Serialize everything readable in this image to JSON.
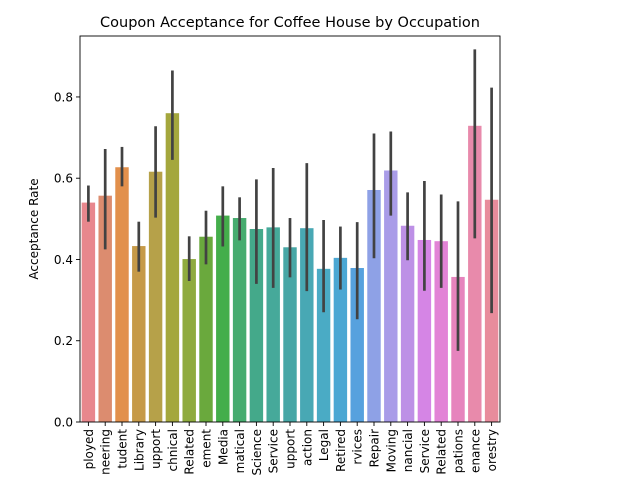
{
  "chart_data": {
    "type": "bar",
    "title": "Coupon Acceptance for Coffee House by Occupation",
    "xlabel": "",
    "ylabel": "Acceptance Rate",
    "ylim": [
      0,
      0.95
    ],
    "yticks": [
      0.0,
      0.2,
      0.4,
      0.6,
      0.8
    ],
    "ytick_labels": [
      "0.0",
      "0.2",
      "0.4",
      "0.6",
      "0.8"
    ],
    "grid": false,
    "legend": "none",
    "categories": [
      "ployed",
      "neering",
      "tudent",
      "Library",
      "upport",
      "chnical",
      "Related",
      "ement",
      "Media",
      "matical",
      "Science",
      "Service",
      "upport",
      "action",
      "Legal",
      "Retired",
      "rvices",
      "Repair",
      "Moving",
      "nancial",
      "Service",
      "Related",
      "pations",
      "enance",
      "orestry"
    ],
    "values": [
      0.54,
      0.557,
      0.627,
      0.433,
      0.616,
      0.76,
      0.401,
      0.456,
      0.508,
      0.502,
      0.475,
      0.479,
      0.43,
      0.477,
      0.377,
      0.404,
      0.379,
      0.571,
      0.619,
      0.483,
      0.448,
      0.445,
      0.357,
      0.729,
      0.547
    ],
    "ci_low": [
      0.493,
      0.425,
      0.58,
      0.37,
      0.503,
      0.645,
      0.347,
      0.388,
      0.432,
      0.447,
      0.34,
      0.33,
      0.356,
      0.322,
      0.27,
      0.326,
      0.253,
      0.403,
      0.508,
      0.398,
      0.323,
      0.33,
      0.175,
      0.452,
      0.268
    ],
    "ci_high": [
      0.582,
      0.672,
      0.677,
      0.493,
      0.728,
      0.865,
      0.457,
      0.52,
      0.58,
      0.553,
      0.597,
      0.625,
      0.502,
      0.637,
      0.497,
      0.481,
      0.492,
      0.71,
      0.715,
      0.565,
      0.593,
      0.56,
      0.543,
      0.917,
      0.823
    ],
    "colors": [
      "#e8878d",
      "#dc8c6f",
      "#e2904c",
      "#c69a48",
      "#b6a149",
      "#a4a73d",
      "#8fab3e",
      "#6aa93d",
      "#44ae4b",
      "#46ac6f",
      "#44a98a",
      "#46a99a",
      "#47a7a6",
      "#48a8b4",
      "#4aabc5",
      "#4ba7d3",
      "#56a1de",
      "#8ea1e6",
      "#a99ce8",
      "#bd90e6",
      "#d585e5",
      "#e283d6",
      "#e684bd",
      "#e88aab",
      "#e88c9c"
    ],
    "error_color": "#424242"
  }
}
